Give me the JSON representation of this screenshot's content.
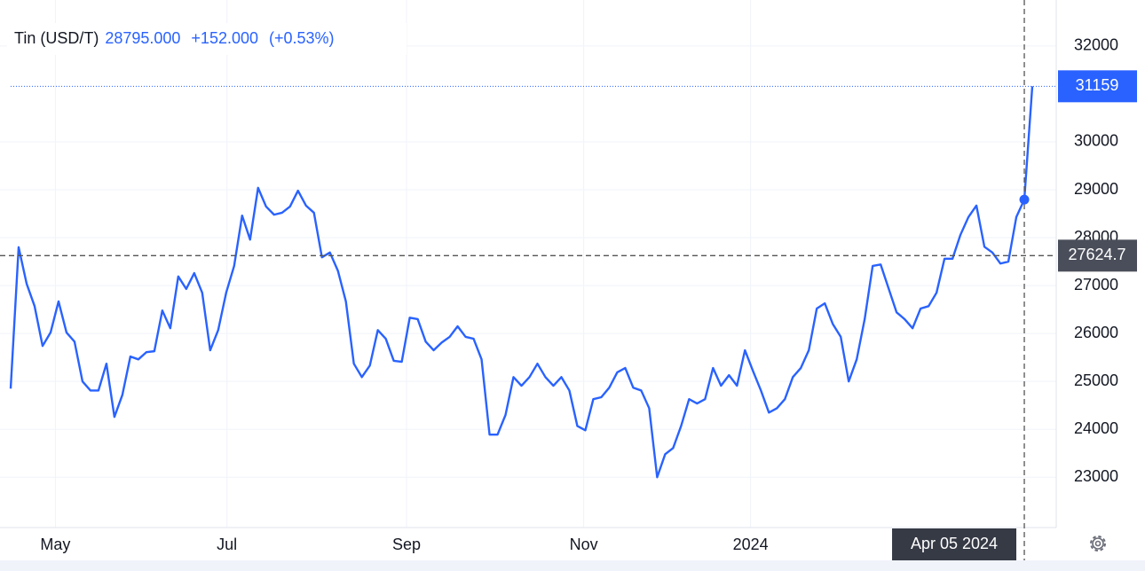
{
  "chart_data": {
    "type": "line",
    "title": "Tin (USD/T)",
    "header": {
      "price": 28795,
      "price_label": "28795.000",
      "change": 152,
      "change_label": "+152.000",
      "change_pct": 0.53,
      "change_pct_label": "(+0.53%)"
    },
    "series": [
      {
        "name": "Tin (USD/T)",
        "color": "#2962ff",
        "values": [
          24850,
          27800,
          27040,
          26570,
          25740,
          26020,
          26670,
          26020,
          25830,
          25000,
          24810,
          24810,
          25370,
          24260,
          24720,
          25520,
          25460,
          25610,
          25630,
          26480,
          26110,
          27190,
          26930,
          27260,
          26850,
          25650,
          26070,
          26850,
          27410,
          28460,
          27960,
          29040,
          28650,
          28480,
          28520,
          28650,
          28980,
          28670,
          28520,
          27590,
          27690,
          27310,
          26670,
          25370,
          25090,
          25330,
          26070,
          25890,
          25430,
          25410,
          26330,
          26300,
          25830,
          25650,
          25810,
          25930,
          26150,
          25930,
          25890,
          25460,
          23890,
          23890,
          24300,
          25090,
          24910,
          25090,
          25370,
          25090,
          24910,
          25090,
          24810,
          24070,
          23980,
          24630,
          24670,
          24870,
          25190,
          25280,
          24870,
          24810,
          24440,
          23000,
          23480,
          23610,
          24070,
          24630,
          24540,
          24630,
          25280,
          24910,
          25130,
          24910,
          25650,
          25220,
          24810,
          24350,
          24440,
          24630,
          25090,
          25280,
          25650,
          26520,
          26630,
          26200,
          25930,
          25000,
          25460,
          26300,
          27410,
          27440,
          26940,
          26440,
          26300,
          26110,
          26520,
          26570,
          26850,
          27560,
          27560,
          28060,
          28430,
          28670,
          27810,
          27690,
          27460,
          27500,
          28430,
          28795,
          31159
        ]
      }
    ],
    "xlim": [
      0,
      131
    ],
    "xticks": [
      {
        "value": 5.6,
        "label": "May"
      },
      {
        "value": 27.1,
        "label": "Jul"
      },
      {
        "value": 49.6,
        "label": "Sep"
      },
      {
        "value": 71.8,
        "label": "Nov"
      },
      {
        "value": 92.7,
        "label": "2024"
      }
    ],
    "ylim": [
      21950,
      32960
    ],
    "yticks": [
      23000,
      24000,
      25000,
      26000,
      27000,
      28000,
      29000,
      30000,
      32000
    ],
    "reference_line": 27624.7,
    "crosshair": {
      "x": 127,
      "label": "Apr 05 2024"
    },
    "grid": true
  }
}
